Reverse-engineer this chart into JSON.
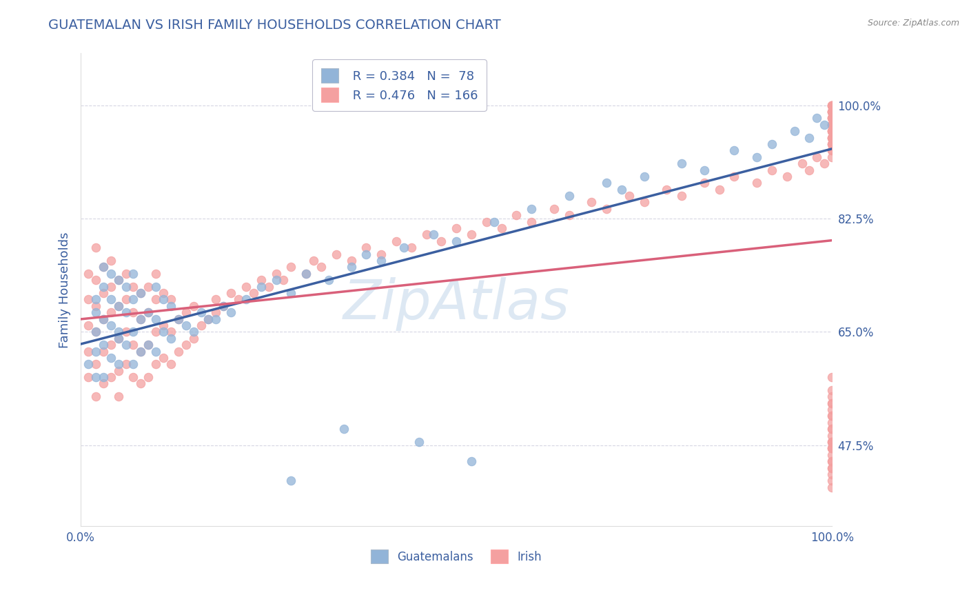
{
  "title": "GUATEMALAN VS IRISH FAMILY HOUSEHOLDS CORRELATION CHART",
  "source": "Source: ZipAtlas.com",
  "ylabel": "Family Households",
  "yticks": [
    0.475,
    0.65,
    0.825,
    1.0
  ],
  "ytick_labels": [
    "47.5%",
    "65.0%",
    "82.5%",
    "100.0%"
  ],
  "legend_r_blue": "R = 0.384",
  "legend_n_blue": "N =  78",
  "legend_r_pink": "R = 0.476",
  "legend_n_pink": "N = 166",
  "blue_color": "#92B4D8",
  "pink_color": "#F4A0A0",
  "trend_blue": "#3B5FA0",
  "trend_pink": "#D9607A",
  "title_color": "#3B5FA0",
  "label_color": "#3B5FA0",
  "tick_label_color": "#3B5FA0",
  "background_color": "#FFFFFF",
  "grid_color": "#CCCCDD",
  "watermark_color": "#BDD3E8",
  "watermark_alpha": 0.5,
  "blue_scatter_x": [
    0.01,
    0.02,
    0.02,
    0.02,
    0.02,
    0.02,
    0.03,
    0.03,
    0.03,
    0.03,
    0.03,
    0.04,
    0.04,
    0.04,
    0.04,
    0.05,
    0.05,
    0.05,
    0.05,
    0.05,
    0.06,
    0.06,
    0.06,
    0.07,
    0.07,
    0.07,
    0.07,
    0.08,
    0.08,
    0.08,
    0.09,
    0.09,
    0.1,
    0.1,
    0.1,
    0.11,
    0.11,
    0.12,
    0.12,
    0.13,
    0.14,
    0.15,
    0.16,
    0.17,
    0.18,
    0.19,
    0.2,
    0.22,
    0.24,
    0.26,
    0.28,
    0.3,
    0.33,
    0.36,
    0.38,
    0.4,
    0.43,
    0.47,
    0.5,
    0.55,
    0.6,
    0.65,
    0.7,
    0.72,
    0.75,
    0.8,
    0.83,
    0.87,
    0.9,
    0.92,
    0.95,
    0.97,
    0.98,
    0.99,
    0.35,
    0.45,
    0.28,
    0.52
  ],
  "blue_scatter_y": [
    0.6,
    0.65,
    0.58,
    0.7,
    0.62,
    0.68,
    0.63,
    0.67,
    0.72,
    0.58,
    0.75,
    0.61,
    0.66,
    0.7,
    0.74,
    0.6,
    0.64,
    0.69,
    0.73,
    0.65,
    0.63,
    0.68,
    0.72,
    0.6,
    0.65,
    0.7,
    0.74,
    0.62,
    0.67,
    0.71,
    0.63,
    0.68,
    0.62,
    0.67,
    0.72,
    0.65,
    0.7,
    0.64,
    0.69,
    0.67,
    0.66,
    0.65,
    0.68,
    0.67,
    0.67,
    0.69,
    0.68,
    0.7,
    0.72,
    0.73,
    0.71,
    0.74,
    0.73,
    0.75,
    0.77,
    0.76,
    0.78,
    0.8,
    0.79,
    0.82,
    0.84,
    0.86,
    0.88,
    0.87,
    0.89,
    0.91,
    0.9,
    0.93,
    0.92,
    0.94,
    0.96,
    0.95,
    0.98,
    0.97,
    0.5,
    0.48,
    0.42,
    0.45
  ],
  "pink_scatter_x": [
    0.01,
    0.01,
    0.01,
    0.01,
    0.01,
    0.02,
    0.02,
    0.02,
    0.02,
    0.02,
    0.02,
    0.03,
    0.03,
    0.03,
    0.03,
    0.03,
    0.04,
    0.04,
    0.04,
    0.04,
    0.04,
    0.05,
    0.05,
    0.05,
    0.05,
    0.05,
    0.06,
    0.06,
    0.06,
    0.06,
    0.07,
    0.07,
    0.07,
    0.07,
    0.08,
    0.08,
    0.08,
    0.08,
    0.09,
    0.09,
    0.09,
    0.09,
    0.1,
    0.1,
    0.1,
    0.1,
    0.11,
    0.11,
    0.11,
    0.12,
    0.12,
    0.12,
    0.13,
    0.13,
    0.14,
    0.14,
    0.15,
    0.15,
    0.16,
    0.17,
    0.18,
    0.18,
    0.19,
    0.2,
    0.21,
    0.22,
    0.23,
    0.24,
    0.25,
    0.26,
    0.27,
    0.28,
    0.3,
    0.31,
    0.32,
    0.34,
    0.36,
    0.38,
    0.4,
    0.42,
    0.44,
    0.46,
    0.48,
    0.5,
    0.52,
    0.54,
    0.56,
    0.58,
    0.6,
    0.63,
    0.65,
    0.68,
    0.7,
    0.73,
    0.75,
    0.78,
    0.8,
    0.83,
    0.85,
    0.87,
    0.9,
    0.92,
    0.94,
    0.96,
    0.97,
    0.98,
    0.99,
    1.0,
    1.0,
    1.0,
    1.0,
    1.0,
    1.0,
    1.0,
    1.0,
    1.0,
    1.0,
    1.0,
    1.0,
    1.0,
    1.0,
    1.0,
    1.0,
    1.0,
    1.0,
    1.0,
    1.0,
    1.0,
    1.0,
    1.0,
    1.0,
    1.0,
    1.0,
    1.0,
    1.0,
    1.0,
    1.0,
    1.0,
    1.0,
    1.0,
    1.0,
    1.0,
    1.0,
    1.0,
    1.0,
    1.0,
    1.0,
    1.0,
    1.0,
    1.0,
    1.0,
    1.0,
    1.0,
    1.0,
    1.0,
    1.0,
    1.0,
    1.0,
    1.0,
    1.0,
    1.0,
    1.0,
    1.0,
    1.0,
    1.0,
    1.0
  ],
  "pink_scatter_y": [
    0.62,
    0.66,
    0.7,
    0.58,
    0.74,
    0.6,
    0.65,
    0.69,
    0.73,
    0.55,
    0.78,
    0.57,
    0.62,
    0.67,
    0.71,
    0.75,
    0.58,
    0.63,
    0.68,
    0.72,
    0.76,
    0.59,
    0.64,
    0.69,
    0.73,
    0.55,
    0.6,
    0.65,
    0.7,
    0.74,
    0.58,
    0.63,
    0.68,
    0.72,
    0.57,
    0.62,
    0.67,
    0.71,
    0.58,
    0.63,
    0.68,
    0.72,
    0.6,
    0.65,
    0.7,
    0.74,
    0.61,
    0.66,
    0.71,
    0.6,
    0.65,
    0.7,
    0.62,
    0.67,
    0.63,
    0.68,
    0.64,
    0.69,
    0.66,
    0.67,
    0.68,
    0.7,
    0.69,
    0.71,
    0.7,
    0.72,
    0.71,
    0.73,
    0.72,
    0.74,
    0.73,
    0.75,
    0.74,
    0.76,
    0.75,
    0.77,
    0.76,
    0.78,
    0.77,
    0.79,
    0.78,
    0.8,
    0.79,
    0.81,
    0.8,
    0.82,
    0.81,
    0.83,
    0.82,
    0.84,
    0.83,
    0.85,
    0.84,
    0.86,
    0.85,
    0.87,
    0.86,
    0.88,
    0.87,
    0.89,
    0.88,
    0.9,
    0.89,
    0.91,
    0.9,
    0.92,
    0.91,
    0.93,
    0.94,
    0.92,
    0.95,
    0.93,
    0.94,
    0.96,
    0.95,
    0.97,
    0.98,
    0.99,
    1.0,
    0.98,
    0.97,
    0.99,
    1.0,
    0.96,
    0.98,
    0.97,
    0.99,
    1.0,
    0.95,
    0.96,
    0.98,
    0.97,
    0.99,
    1.0,
    0.94,
    0.95,
    0.97,
    0.96,
    0.99,
    1.0,
    0.56,
    0.54,
    0.52,
    0.5,
    0.48,
    0.47,
    0.45,
    0.52,
    0.55,
    0.58,
    0.54,
    0.51,
    0.49,
    0.47,
    0.48,
    0.46,
    0.44,
    0.42,
    0.48,
    0.45,
    0.43,
    0.41,
    0.53,
    0.5,
    0.47,
    0.44
  ]
}
